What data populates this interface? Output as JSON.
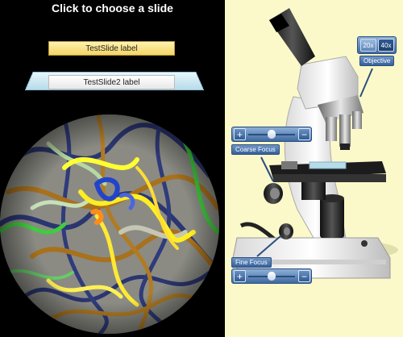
{
  "header": {
    "title": "Click to choose a slide"
  },
  "slides": [
    {
      "label": "TestSlide label",
      "style": "yellow"
    },
    {
      "label": "TestSlide2 label",
      "style": "glass"
    }
  ],
  "objective": {
    "label": "Objective",
    "options": [
      "20x",
      "40x"
    ],
    "selected": "40x"
  },
  "coarse_focus": {
    "label": "Coarse Focus",
    "plus": "+",
    "minus": "−",
    "level": 0.5
  },
  "fine_focus": {
    "label": "Fine Focus",
    "plus": "+",
    "minus": "−",
    "level": 0.5
  },
  "colors": {
    "left_background": "#000000",
    "right_background": "#fbf9c9",
    "control_blue": "#3f6aa0",
    "slide_yellow": "#f4d466"
  }
}
